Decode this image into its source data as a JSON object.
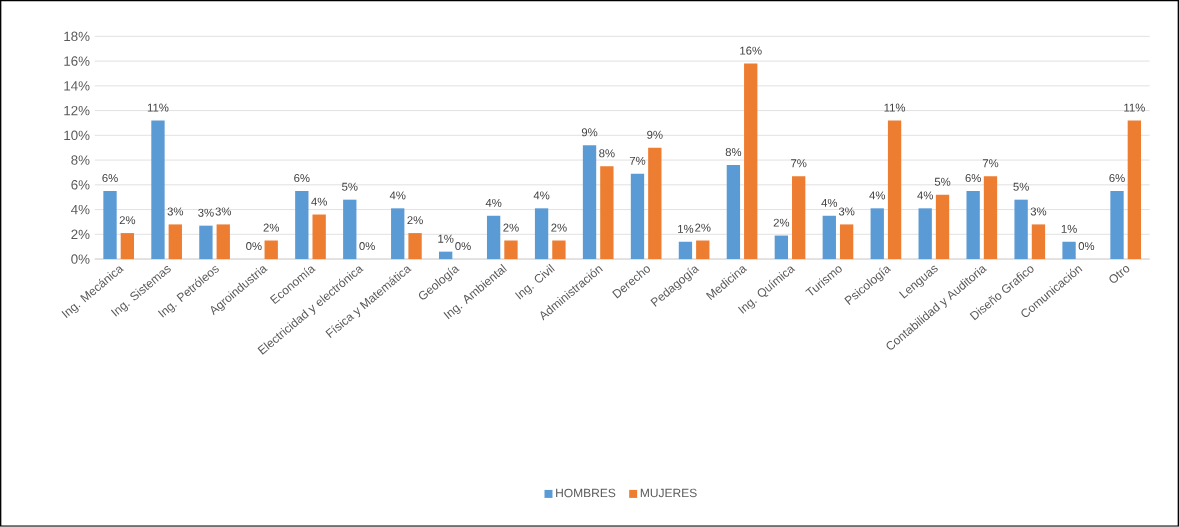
{
  "chart_data": {
    "type": "bar",
    "categories": [
      "Ing. Mecánica",
      "Ing. Sistemas",
      "Ing. Petróleos",
      "Agroindustria",
      "Economía",
      "Electricidad y electrónica",
      "Física y Matemática",
      "Geología",
      "Ing. Ambiental",
      "Ing. Civil",
      "Administración",
      "Derecho",
      "Pedagogía",
      "Medicina",
      "Ing. Química",
      "Turismo",
      "Psicología",
      "Lenguas",
      "Contabilidad y Auditoria",
      "Diseño Grafico",
      "Comunicación",
      "Otro"
    ],
    "series": [
      {
        "name": "HOMBRES",
        "color": "#5b9bd5",
        "values": [
          5.5,
          11.2,
          2.7,
          0,
          5.5,
          4.8,
          4.1,
          0.6,
          3.5,
          4.1,
          9.2,
          6.9,
          1.4,
          7.6,
          1.9,
          3.5,
          4.1,
          4.1,
          5.5,
          4.8,
          1.4,
          5.5
        ],
        "value_labels": [
          "6%",
          "11%",
          "3%",
          "0%",
          "6%",
          "5%",
          "4%",
          "1%",
          "4%",
          "4%",
          "9%",
          "7%",
          "1%",
          "8%",
          "2%",
          "4%",
          "4%",
          "4%",
          "6%",
          "5%",
          "1%",
          "6%"
        ]
      },
      {
        "name": "MUJERES",
        "color": "#ed7d31",
        "values": [
          2.1,
          2.8,
          2.8,
          1.5,
          3.6,
          0,
          2.1,
          0,
          1.5,
          1.5,
          7.5,
          9.0,
          1.5,
          15.8,
          6.7,
          2.8,
          11.2,
          5.2,
          6.7,
          2.8,
          0,
          11.2
        ],
        "value_labels": [
          "2%",
          "3%",
          "3%",
          "2%",
          "4%",
          "0%",
          "2%",
          "0%",
          "2%",
          "2%",
          "8%",
          "9%",
          "2%",
          "16%",
          "7%",
          "3%",
          "11%",
          "5%",
          "7%",
          "3%",
          "0%",
          "11%"
        ]
      }
    ],
    "ylim": [
      0,
      18
    ],
    "yticks": [
      {
        "value": 0,
        "label": "0%"
      },
      {
        "value": 2,
        "label": "2%"
      },
      {
        "value": 4,
        "label": "4%"
      },
      {
        "value": 6,
        "label": "6%"
      },
      {
        "value": 8,
        "label": "8%"
      },
      {
        "value": 10,
        "label": "10%"
      },
      {
        "value": 12,
        "label": "12%"
      },
      {
        "value": 14,
        "label": "14%"
      },
      {
        "value": 16,
        "label": "16%"
      },
      {
        "value": 18,
        "label": "18%"
      }
    ],
    "grid": "y",
    "legend": "bottom"
  }
}
